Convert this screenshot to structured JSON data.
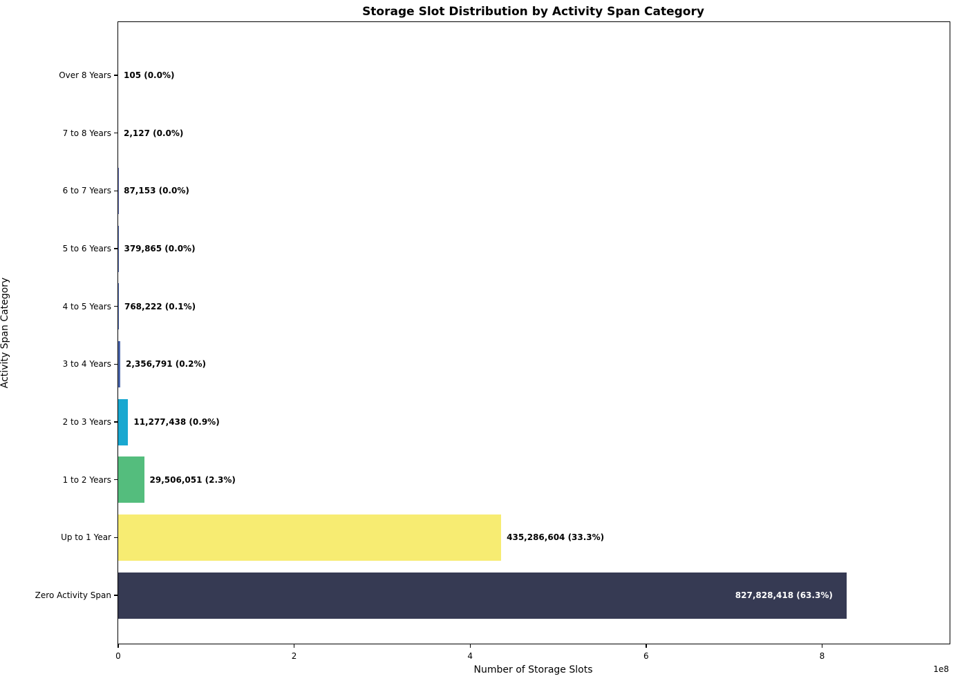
{
  "chart_data": {
    "type": "bar",
    "orientation": "horizontal",
    "title": "Storage Slot Distribution by Activity Span Category",
    "xlabel": "Number of Storage Slots",
    "ylabel": "Activity Span Category",
    "x_offset_label": "1e8",
    "xlim": [
      0,
      945000000
    ],
    "xticks": [
      {
        "value": 0,
        "label": "0"
      },
      {
        "value": 200000000,
        "label": "2"
      },
      {
        "value": 400000000,
        "label": "4"
      },
      {
        "value": 600000000,
        "label": "6"
      },
      {
        "value": 800000000,
        "label": "8"
      }
    ],
    "grid": false,
    "legend": null,
    "bar_colors_note": "top four bars too small to be visible",
    "rows_top_to_bottom": [
      {
        "category": "Over 8 Years",
        "value": 105,
        "percent": 0.0,
        "label": "105 (0.0%)",
        "color": "#7b6bb5",
        "label_inside": false
      },
      {
        "category": "7 to 8 Years",
        "value": 2127,
        "percent": 0.0,
        "label": "2,127 (0.0%)",
        "color": "#6f6fb2",
        "label_inside": false
      },
      {
        "category": "6 to 7 Years",
        "value": 87153,
        "percent": 0.0,
        "label": "87,153 (0.0%)",
        "color": "#5f6ab0",
        "label_inside": false
      },
      {
        "category": "5 to 6 Years",
        "value": 379865,
        "percent": 0.0,
        "label": "379,865 (0.0%)",
        "color": "#566aae",
        "label_inside": false
      },
      {
        "category": "4 to 5 Years",
        "value": 768222,
        "percent": 0.1,
        "label": "768,222 (0.1%)",
        "color": "#4f68ae",
        "label_inside": false
      },
      {
        "category": "3 to 4 Years",
        "value": 2356791,
        "percent": 0.2,
        "label": "2,356,791 (0.2%)",
        "color": "#4d68ae",
        "label_inside": false
      },
      {
        "category": "2 to 3 Years",
        "value": 11277438,
        "percent": 0.9,
        "label": "11,277,438 (0.9%)",
        "color": "#19a8d0",
        "label_inside": false
      },
      {
        "category": "1 to 2 Years",
        "value": 29506051,
        "percent": 2.3,
        "label": "29,506,051 (2.3%)",
        "color": "#54bd7d",
        "label_inside": false
      },
      {
        "category": "Up to 1 Year",
        "value": 435286604,
        "percent": 33.3,
        "label": "435,286,604 (33.3%)",
        "color": "#f7ec72",
        "label_inside": false
      },
      {
        "category": "Zero Activity Span",
        "value": 827828418,
        "percent": 63.3,
        "label": "827,828,418 (63.3%)",
        "color": "#363a53",
        "label_inside": true
      }
    ]
  }
}
